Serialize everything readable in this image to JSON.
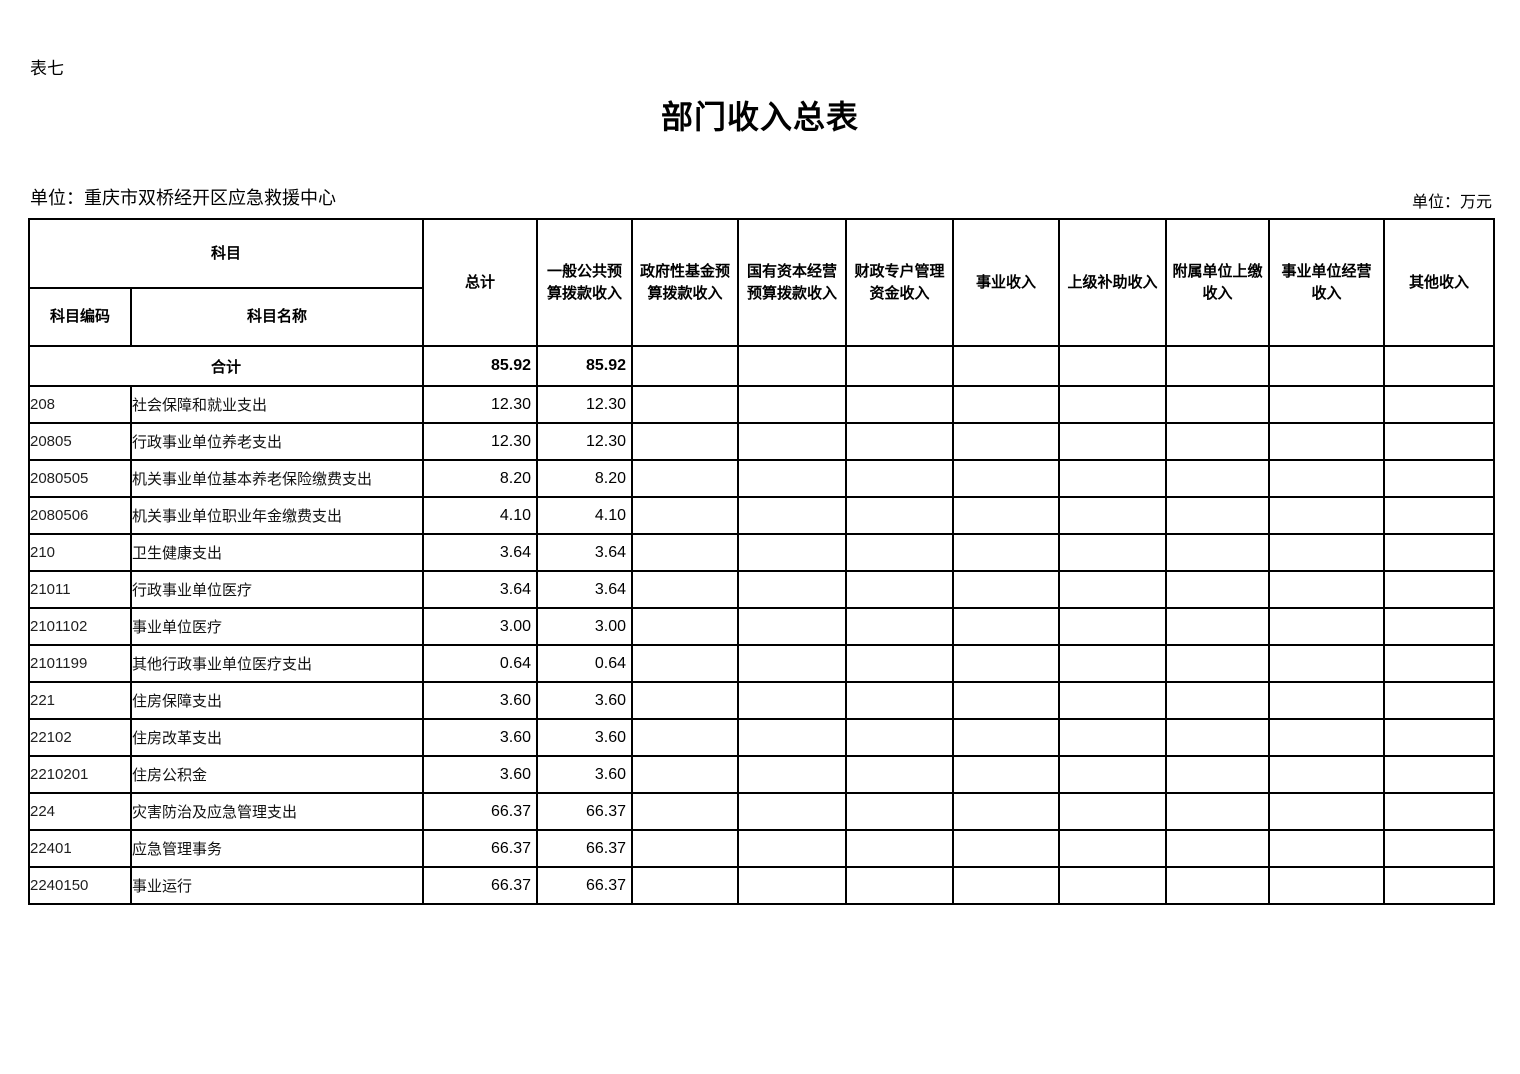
{
  "page": {
    "sheet_label": "表七",
    "title": "部门收入总表",
    "unit_left": "单位：重庆市双桥经开区应急救援中心",
    "unit_right": "单位：万元"
  },
  "table": {
    "header": {
      "subject_group_label": "科目",
      "subject_code_label": "科目编码",
      "subject_name_label": "科目名称",
      "value_columns": [
        "总计",
        "一般公共预算拨款收入",
        "政府性基金预算拨款收入",
        "国有资本经营预算拨款收入",
        "财政专户管理资金收入",
        "事业收入",
        "上级补助收入",
        "附属单位上缴收入",
        "事业单位经营收入",
        "其他收入"
      ]
    },
    "total_row": {
      "label": "合计",
      "values": [
        "85.92",
        "85.92",
        "",
        "",
        "",
        "",
        "",
        "",
        "",
        ""
      ]
    },
    "rows": [
      {
        "code": "208",
        "name": "社会保障和就业支出",
        "level": 1,
        "values": [
          "12.30",
          "12.30",
          "",
          "",
          "",
          "",
          "",
          "",
          "",
          ""
        ]
      },
      {
        "code": "20805",
        "name": "行政事业单位养老支出",
        "level": 2,
        "values": [
          "12.30",
          "12.30",
          "",
          "",
          "",
          "",
          "",
          "",
          "",
          ""
        ]
      },
      {
        "code": "2080505",
        "name": "机关事业单位基本养老保险缴费支出",
        "level": 3,
        "values": [
          "8.20",
          "8.20",
          "",
          "",
          "",
          "",
          "",
          "",
          "",
          ""
        ]
      },
      {
        "code": "2080506",
        "name": "机关事业单位职业年金缴费支出",
        "level": 3,
        "values": [
          "4.10",
          "4.10",
          "",
          "",
          "",
          "",
          "",
          "",
          "",
          ""
        ]
      },
      {
        "code": "210",
        "name": "卫生健康支出",
        "level": 1,
        "values": [
          "3.64",
          "3.64",
          "",
          "",
          "",
          "",
          "",
          "",
          "",
          ""
        ]
      },
      {
        "code": "21011",
        "name": "行政事业单位医疗",
        "level": 2,
        "values": [
          "3.64",
          "3.64",
          "",
          "",
          "",
          "",
          "",
          "",
          "",
          ""
        ]
      },
      {
        "code": "2101102",
        "name": "事业单位医疗",
        "level": 3,
        "values": [
          "3.00",
          "3.00",
          "",
          "",
          "",
          "",
          "",
          "",
          "",
          ""
        ]
      },
      {
        "code": "2101199",
        "name": "其他行政事业单位医疗支出",
        "level": 3,
        "values": [
          "0.64",
          "0.64",
          "",
          "",
          "",
          "",
          "",
          "",
          "",
          ""
        ]
      },
      {
        "code": "221",
        "name": "住房保障支出",
        "level": 1,
        "values": [
          "3.60",
          "3.60",
          "",
          "",
          "",
          "",
          "",
          "",
          "",
          ""
        ]
      },
      {
        "code": "22102",
        "name": "住房改革支出",
        "level": 2,
        "values": [
          "3.60",
          "3.60",
          "",
          "",
          "",
          "",
          "",
          "",
          "",
          ""
        ]
      },
      {
        "code": "2210201",
        "name": "住房公积金",
        "level": 3,
        "values": [
          "3.60",
          "3.60",
          "",
          "",
          "",
          "",
          "",
          "",
          "",
          ""
        ]
      },
      {
        "code": "224",
        "name": "灾害防治及应急管理支出",
        "level": 1,
        "values": [
          "66.37",
          "66.37",
          "",
          "",
          "",
          "",
          "",
          "",
          "",
          ""
        ]
      },
      {
        "code": "22401",
        "name": "应急管理事务",
        "level": 2,
        "values": [
          "66.37",
          "66.37",
          "",
          "",
          "",
          "",
          "",
          "",
          "",
          ""
        ]
      },
      {
        "code": "2240150",
        "name": "事业运行",
        "level": 3,
        "values": [
          "66.37",
          "66.37",
          "",
          "",
          "",
          "",
          "",
          "",
          "",
          ""
        ]
      }
    ]
  }
}
